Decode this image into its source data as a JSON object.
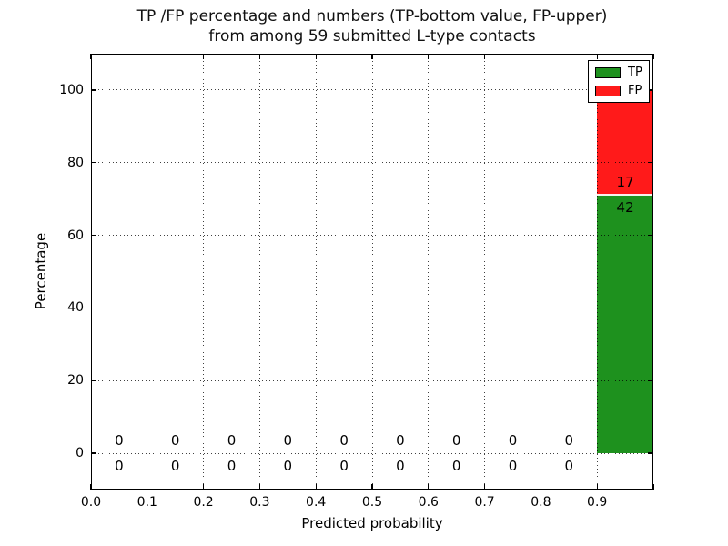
{
  "figure": {
    "title_line1": "TP /FP percentage and numbers (TP-bottom value, FP-upper)",
    "title_line2": "from among 59 submitted L-type contacts"
  },
  "axes": {
    "xlabel": "Predicted probability",
    "ylabel": "Percentage",
    "x_tick_labels": [
      "0.0",
      "0.1",
      "0.2",
      "0.3",
      "0.4",
      "0.5",
      "0.6",
      "0.7",
      "0.8",
      "0.9"
    ],
    "y_tick_labels": [
      "0",
      "20",
      "40",
      "60",
      "80",
      "100"
    ]
  },
  "legend": {
    "items": [
      {
        "label": "TP",
        "color": "#1e911e"
      },
      {
        "label": "FP",
        "color": "#ff1a1a"
      }
    ]
  },
  "chart_data": {
    "type": "bar",
    "stacked": true,
    "title": "TP /FP percentage and numbers (TP-bottom value, FP-upper)\nfrom among 59 submitted L-type contacts",
    "xlabel": "Predicted probability",
    "ylabel": "Percentage",
    "xlim": [
      0.0,
      1.0
    ],
    "ylim": [
      -10,
      110
    ],
    "grid": true,
    "grid_style": "dotted",
    "legend_position": "upper right",
    "total_contacts": 59,
    "bin_width": 0.1,
    "bin_centers": [
      0.05,
      0.15,
      0.25,
      0.35,
      0.45,
      0.55,
      0.65,
      0.75,
      0.85,
      0.95
    ],
    "x_tick_values": [
      0.0,
      0.1,
      0.2,
      0.3,
      0.4,
      0.5,
      0.6,
      0.7,
      0.8,
      0.9,
      1.0
    ],
    "y_tick_values": [
      0,
      20,
      40,
      60,
      80,
      100
    ],
    "series": [
      {
        "name": "TP",
        "color": "#1e911e",
        "counts": [
          0,
          0,
          0,
          0,
          0,
          0,
          0,
          0,
          0,
          42
        ],
        "percentages": [
          0,
          0,
          0,
          0,
          0,
          0,
          0,
          0,
          0,
          71.19
        ]
      },
      {
        "name": "FP",
        "color": "#ff1a1a",
        "counts": [
          0,
          0,
          0,
          0,
          0,
          0,
          0,
          0,
          0,
          17
        ],
        "percentages": [
          0,
          0,
          0,
          0,
          0,
          0,
          0,
          0,
          0,
          28.81
        ]
      }
    ],
    "annotation_rule": "FP count above TP count at each bin center; offset 3.5 pct around top of TP segment",
    "annotation_offset_pct": 3.5
  }
}
